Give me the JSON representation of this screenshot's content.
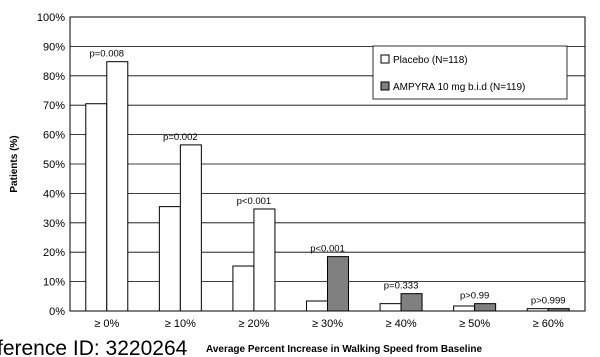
{
  "chart_data": {
    "type": "bar",
    "categories": [
      "≥ 0%",
      "≥ 10%",
      "≥ 20%",
      "≥ 30%",
      "≥ 40%",
      "≥ 50%",
      "≥ 60%"
    ],
    "series": [
      {
        "name": "Placebo (N=118)",
        "values": [
          70.5,
          35.5,
          15.3,
          3.4,
          2.5,
          1.7,
          0.8
        ],
        "color": "#ffffff"
      },
      {
        "name": "AMPYRA 10 mg b.i.d (N=119)",
        "values": [
          84.8,
          56.5,
          34.7,
          18.5,
          5.9,
          2.5,
          0.8
        ],
        "color": "#808080"
      }
    ],
    "highlight": [
      false,
      false,
      false,
      true,
      true,
      true,
      true
    ],
    "p_values": [
      "p=0.008",
      "p=0.002",
      "p<0.001",
      "p<0.001",
      "p=0.333",
      "p>0.99",
      "p>0.999"
    ],
    "xlabel": "Average Percent Increase in Walking Speed from Baseline",
    "ylabel": "Patients (%)",
    "ylim": [
      0,
      100
    ],
    "yticks": [
      "0%",
      "10%",
      "20%",
      "30%",
      "40%",
      "50%",
      "60%",
      "70%",
      "80%",
      "90%",
      "100%"
    ],
    "grid": true,
    "legend_position": "top-right"
  },
  "overlay_text": "ference ID: 3220264"
}
